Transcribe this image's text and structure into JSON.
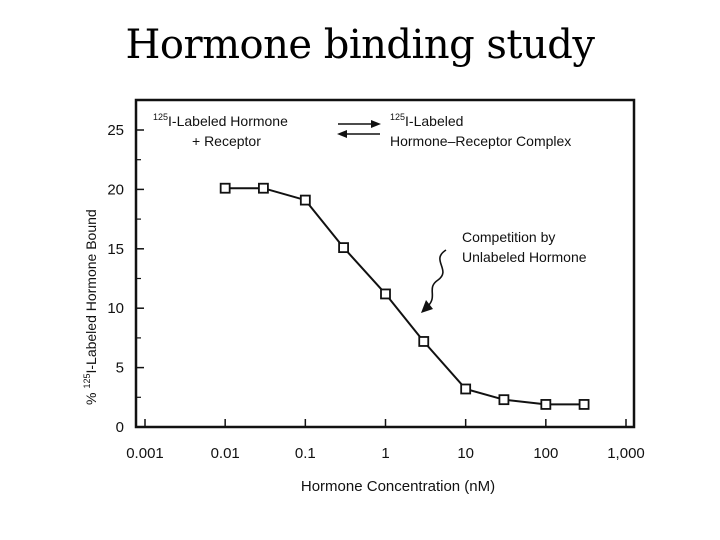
{
  "slide": {
    "title": "Hormone binding study"
  },
  "chart_data": {
    "type": "line",
    "xscale": "log",
    "x": [
      0.01,
      0.03,
      0.1,
      0.3,
      1,
      3,
      10,
      30,
      100,
      300
    ],
    "series": [
      {
        "values": [
          20.1,
          20.1,
          19.1,
          15.1,
          11.2,
          7.2,
          3.2,
          2.3,
          1.9,
          1.9
        ]
      }
    ],
    "xticks": [
      0.001,
      0.01,
      0.1,
      1,
      10,
      100,
      1000
    ],
    "xtick_labels": [
      "0.001",
      "0.01",
      "0.1",
      "1",
      "10",
      "100",
      "1,000"
    ],
    "yticks": [
      0,
      5,
      10,
      15,
      20,
      25
    ],
    "ytick_labels": [
      "0",
      "5",
      "10",
      "15",
      "20",
      "25"
    ],
    "xlim": [
      0.001,
      1000
    ],
    "ylim": [
      0,
      25
    ],
    "xlabel": "Hormone Concentration (nM)",
    "ylabel_prefix": "%",
    "ylabel_sup": "125",
    "ylabel": "I-Labeled Hormone Bound",
    "marker": "open-square",
    "grid": false,
    "color": "#111111",
    "reaction": {
      "left_sup": "125",
      "left_line1": "I-Labeled Hormone",
      "left_line2": "+ Receptor",
      "right_sup": "125",
      "right_line1": "I-Labeled",
      "right_line2": "Hormone–Receptor Complex"
    },
    "annotation": {
      "line1": "Competition by",
      "line2": "Unlabeled Hormone"
    }
  }
}
